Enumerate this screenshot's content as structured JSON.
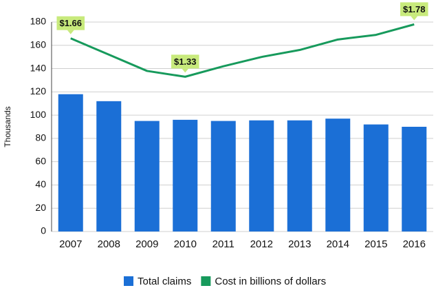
{
  "chart_data": {
    "type": "bar",
    "y_label": "Thousands",
    "categories": [
      "2007",
      "2008",
      "2009",
      "2010",
      "2011",
      "2012",
      "2013",
      "2014",
      "2015",
      "2016"
    ],
    "series": [
      {
        "name": "Total claims",
        "type": "bar",
        "color": "#1b6fd6",
        "values": [
          118,
          112,
          95,
          96,
          95,
          95.5,
          95.5,
          97,
          92,
          90
        ]
      },
      {
        "name": "Cost in billions of dollars",
        "type": "line",
        "axis": "y2",
        "color": "#179a5c",
        "values": [
          1.66,
          1.52,
          1.38,
          1.33,
          1.42,
          1.5,
          1.56,
          1.65,
          1.69,
          1.78
        ],
        "value_labels": [
          "$1.66",
          null,
          null,
          "$1.33",
          null,
          null,
          null,
          null,
          null,
          "$1.78"
        ]
      }
    ],
    "ylim": [
      0,
      180
    ],
    "yticks": [
      0,
      20,
      40,
      60,
      80,
      100,
      120,
      140,
      160,
      180
    ],
    "y2lim": [
      0,
      1.8
    ],
    "grid": true,
    "legend": "bottom"
  }
}
